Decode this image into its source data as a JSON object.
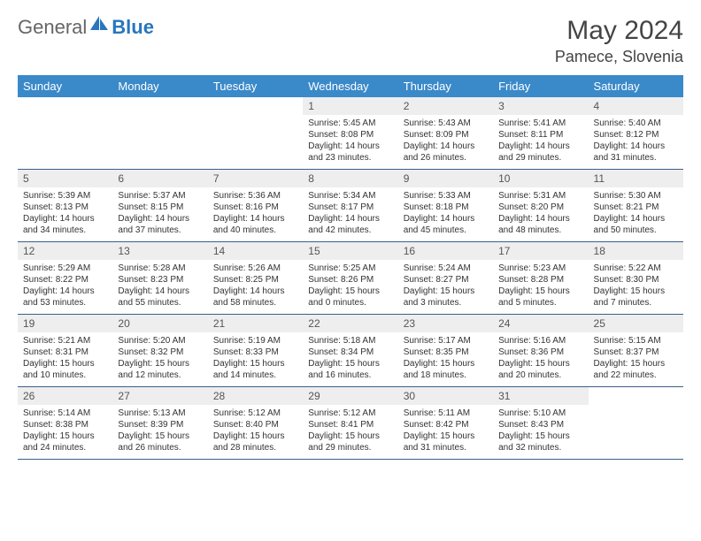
{
  "brand": {
    "part1": "General",
    "part2": "Blue"
  },
  "title": "May 2024",
  "location": "Pamece, Slovenia",
  "colors": {
    "header_bg": "#3a89c9",
    "header_text": "#ffffff",
    "daynum_bg": "#eeeeee",
    "border": "#3a5f8a",
    "brand_gray": "#666666",
    "brand_blue": "#2876bd"
  },
  "weekdays": [
    "Sunday",
    "Monday",
    "Tuesday",
    "Wednesday",
    "Thursday",
    "Friday",
    "Saturday"
  ],
  "weeks": [
    [
      {
        "day": "",
        "sunrise": "",
        "sunset": "",
        "daylight1": "",
        "daylight2": ""
      },
      {
        "day": "",
        "sunrise": "",
        "sunset": "",
        "daylight1": "",
        "daylight2": ""
      },
      {
        "day": "",
        "sunrise": "",
        "sunset": "",
        "daylight1": "",
        "daylight2": ""
      },
      {
        "day": "1",
        "sunrise": "Sunrise: 5:45 AM",
        "sunset": "Sunset: 8:08 PM",
        "daylight1": "Daylight: 14 hours",
        "daylight2": "and 23 minutes."
      },
      {
        "day": "2",
        "sunrise": "Sunrise: 5:43 AM",
        "sunset": "Sunset: 8:09 PM",
        "daylight1": "Daylight: 14 hours",
        "daylight2": "and 26 minutes."
      },
      {
        "day": "3",
        "sunrise": "Sunrise: 5:41 AM",
        "sunset": "Sunset: 8:11 PM",
        "daylight1": "Daylight: 14 hours",
        "daylight2": "and 29 minutes."
      },
      {
        "day": "4",
        "sunrise": "Sunrise: 5:40 AM",
        "sunset": "Sunset: 8:12 PM",
        "daylight1": "Daylight: 14 hours",
        "daylight2": "and 31 minutes."
      }
    ],
    [
      {
        "day": "5",
        "sunrise": "Sunrise: 5:39 AM",
        "sunset": "Sunset: 8:13 PM",
        "daylight1": "Daylight: 14 hours",
        "daylight2": "and 34 minutes."
      },
      {
        "day": "6",
        "sunrise": "Sunrise: 5:37 AM",
        "sunset": "Sunset: 8:15 PM",
        "daylight1": "Daylight: 14 hours",
        "daylight2": "and 37 minutes."
      },
      {
        "day": "7",
        "sunrise": "Sunrise: 5:36 AM",
        "sunset": "Sunset: 8:16 PM",
        "daylight1": "Daylight: 14 hours",
        "daylight2": "and 40 minutes."
      },
      {
        "day": "8",
        "sunrise": "Sunrise: 5:34 AM",
        "sunset": "Sunset: 8:17 PM",
        "daylight1": "Daylight: 14 hours",
        "daylight2": "and 42 minutes."
      },
      {
        "day": "9",
        "sunrise": "Sunrise: 5:33 AM",
        "sunset": "Sunset: 8:18 PM",
        "daylight1": "Daylight: 14 hours",
        "daylight2": "and 45 minutes."
      },
      {
        "day": "10",
        "sunrise": "Sunrise: 5:31 AM",
        "sunset": "Sunset: 8:20 PM",
        "daylight1": "Daylight: 14 hours",
        "daylight2": "and 48 minutes."
      },
      {
        "day": "11",
        "sunrise": "Sunrise: 5:30 AM",
        "sunset": "Sunset: 8:21 PM",
        "daylight1": "Daylight: 14 hours",
        "daylight2": "and 50 minutes."
      }
    ],
    [
      {
        "day": "12",
        "sunrise": "Sunrise: 5:29 AM",
        "sunset": "Sunset: 8:22 PM",
        "daylight1": "Daylight: 14 hours",
        "daylight2": "and 53 minutes."
      },
      {
        "day": "13",
        "sunrise": "Sunrise: 5:28 AM",
        "sunset": "Sunset: 8:23 PM",
        "daylight1": "Daylight: 14 hours",
        "daylight2": "and 55 minutes."
      },
      {
        "day": "14",
        "sunrise": "Sunrise: 5:26 AM",
        "sunset": "Sunset: 8:25 PM",
        "daylight1": "Daylight: 14 hours",
        "daylight2": "and 58 minutes."
      },
      {
        "day": "15",
        "sunrise": "Sunrise: 5:25 AM",
        "sunset": "Sunset: 8:26 PM",
        "daylight1": "Daylight: 15 hours",
        "daylight2": "and 0 minutes."
      },
      {
        "day": "16",
        "sunrise": "Sunrise: 5:24 AM",
        "sunset": "Sunset: 8:27 PM",
        "daylight1": "Daylight: 15 hours",
        "daylight2": "and 3 minutes."
      },
      {
        "day": "17",
        "sunrise": "Sunrise: 5:23 AM",
        "sunset": "Sunset: 8:28 PM",
        "daylight1": "Daylight: 15 hours",
        "daylight2": "and 5 minutes."
      },
      {
        "day": "18",
        "sunrise": "Sunrise: 5:22 AM",
        "sunset": "Sunset: 8:30 PM",
        "daylight1": "Daylight: 15 hours",
        "daylight2": "and 7 minutes."
      }
    ],
    [
      {
        "day": "19",
        "sunrise": "Sunrise: 5:21 AM",
        "sunset": "Sunset: 8:31 PM",
        "daylight1": "Daylight: 15 hours",
        "daylight2": "and 10 minutes."
      },
      {
        "day": "20",
        "sunrise": "Sunrise: 5:20 AM",
        "sunset": "Sunset: 8:32 PM",
        "daylight1": "Daylight: 15 hours",
        "daylight2": "and 12 minutes."
      },
      {
        "day": "21",
        "sunrise": "Sunrise: 5:19 AM",
        "sunset": "Sunset: 8:33 PM",
        "daylight1": "Daylight: 15 hours",
        "daylight2": "and 14 minutes."
      },
      {
        "day": "22",
        "sunrise": "Sunrise: 5:18 AM",
        "sunset": "Sunset: 8:34 PM",
        "daylight1": "Daylight: 15 hours",
        "daylight2": "and 16 minutes."
      },
      {
        "day": "23",
        "sunrise": "Sunrise: 5:17 AM",
        "sunset": "Sunset: 8:35 PM",
        "daylight1": "Daylight: 15 hours",
        "daylight2": "and 18 minutes."
      },
      {
        "day": "24",
        "sunrise": "Sunrise: 5:16 AM",
        "sunset": "Sunset: 8:36 PM",
        "daylight1": "Daylight: 15 hours",
        "daylight2": "and 20 minutes."
      },
      {
        "day": "25",
        "sunrise": "Sunrise: 5:15 AM",
        "sunset": "Sunset: 8:37 PM",
        "daylight1": "Daylight: 15 hours",
        "daylight2": "and 22 minutes."
      }
    ],
    [
      {
        "day": "26",
        "sunrise": "Sunrise: 5:14 AM",
        "sunset": "Sunset: 8:38 PM",
        "daylight1": "Daylight: 15 hours",
        "daylight2": "and 24 minutes."
      },
      {
        "day": "27",
        "sunrise": "Sunrise: 5:13 AM",
        "sunset": "Sunset: 8:39 PM",
        "daylight1": "Daylight: 15 hours",
        "daylight2": "and 26 minutes."
      },
      {
        "day": "28",
        "sunrise": "Sunrise: 5:12 AM",
        "sunset": "Sunset: 8:40 PM",
        "daylight1": "Daylight: 15 hours",
        "daylight2": "and 28 minutes."
      },
      {
        "day": "29",
        "sunrise": "Sunrise: 5:12 AM",
        "sunset": "Sunset: 8:41 PM",
        "daylight1": "Daylight: 15 hours",
        "daylight2": "and 29 minutes."
      },
      {
        "day": "30",
        "sunrise": "Sunrise: 5:11 AM",
        "sunset": "Sunset: 8:42 PM",
        "daylight1": "Daylight: 15 hours",
        "daylight2": "and 31 minutes."
      },
      {
        "day": "31",
        "sunrise": "Sunrise: 5:10 AM",
        "sunset": "Sunset: 8:43 PM",
        "daylight1": "Daylight: 15 hours",
        "daylight2": "and 32 minutes."
      },
      {
        "day": "",
        "sunrise": "",
        "sunset": "",
        "daylight1": "",
        "daylight2": ""
      }
    ]
  ]
}
